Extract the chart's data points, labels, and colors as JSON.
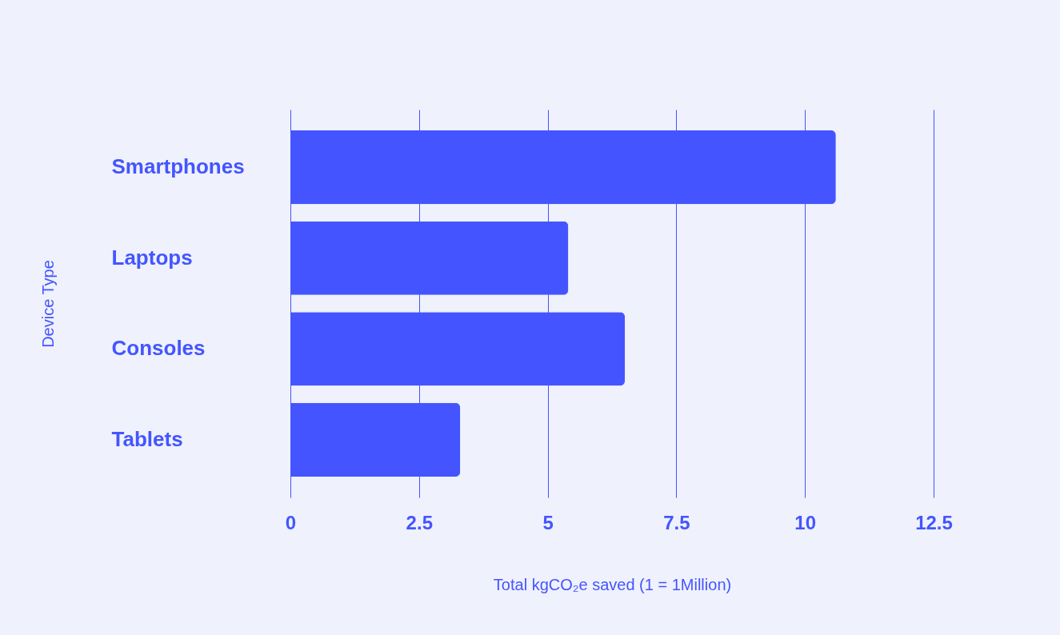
{
  "chart_data": {
    "type": "bar",
    "orientation": "horizontal",
    "xlabel": "Total kgCO₂e saved (1 = 1Million)",
    "ylabel": "Device Type",
    "categories": [
      "Smartphones",
      "Laptops",
      "Consoles",
      "Tablets"
    ],
    "values": [
      10.6,
      5.4,
      6.5,
      3.3
    ],
    "color": "#4455ff",
    "xlim": [
      0,
      12.5
    ],
    "xticks": [
      0,
      2.5,
      5,
      7.5,
      10,
      12.5
    ],
    "grid": "x"
  }
}
